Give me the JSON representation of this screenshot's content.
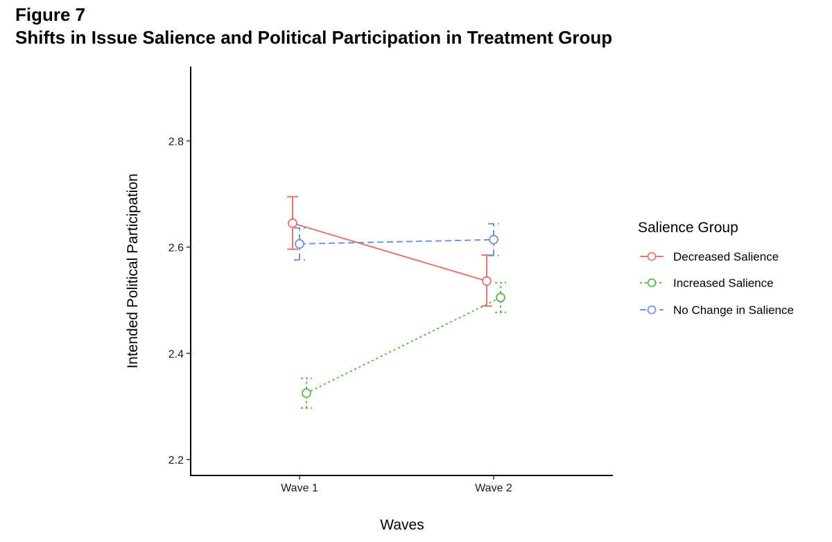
{
  "figure": {
    "label": "Figure 7",
    "title": "Shifts in Issue Salience and Political Participation in Treatment Group"
  },
  "chart_data": {
    "type": "line",
    "xlabel": "Waves",
    "ylabel": "Intended Political Participation",
    "categories": [
      "Wave 1",
      "Wave 2"
    ],
    "ylim": [
      2.17,
      2.94
    ],
    "yticks": [
      2.2,
      2.4,
      2.6,
      2.8
    ],
    "ytick_labels": [
      "2.2",
      "2.4",
      "2.6",
      "2.8"
    ],
    "grid": false,
    "legend": {
      "title": "Salience Group",
      "position": "right"
    },
    "series": [
      {
        "name": "Decreased Salience",
        "color": "#E0766E",
        "line_style": "solid",
        "values": [
          2.645,
          2.536
        ],
        "lower": [
          2.596,
          2.489
        ],
        "upper": [
          2.695,
          2.585
        ]
      },
      {
        "name": "Increased Salience",
        "color": "#5DB946",
        "line_style": "dotted",
        "values": [
          2.325,
          2.505
        ],
        "lower": [
          2.297,
          2.477
        ],
        "upper": [
          2.353,
          2.533
        ]
      },
      {
        "name": "No Change in Salience",
        "color": "#6F93E8",
        "line_style": "dashed",
        "values": [
          2.606,
          2.614
        ],
        "lower": [
          2.576,
          2.584
        ],
        "upper": [
          2.636,
          2.644
        ]
      }
    ]
  }
}
